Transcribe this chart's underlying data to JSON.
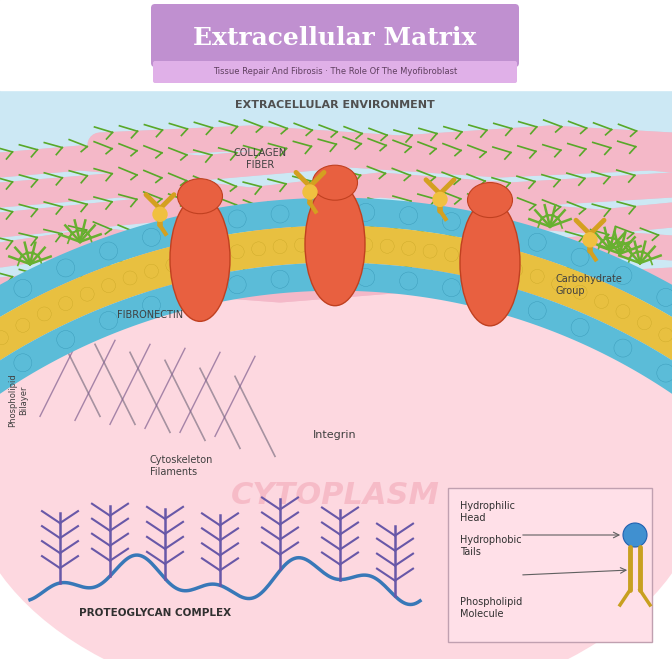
{
  "title": "Extracellular Matrix",
  "subtitle1": "Tissue Repair And Fibrosis",
  "subtitle2": "The Role Of The Myofibroblast",
  "extracellular_env_label": "EXTRACELLULAR ENVIRONMENT",
  "collagen_label": "COLLAGEN\nFIBER",
  "fibronectin_label": "FIBRONECTIN",
  "carbohydrate_label": "Carbohydrate\nGroup",
  "integrin_label": "Integrin",
  "cytoskeleton_label": "Cytoskeleton\nFilaments",
  "phospholipid_label": "Phospholipid\nBilayer",
  "cytoplasm_label": "CYTOPLASM",
  "proteoglycan_label": "PROTEOGLYCAN COMPLEX",
  "hydrophilic_label": "Hydrophilic\nHead",
  "hydrophobic_label": "Hydrophobic\nTails",
  "phospholipid_molecule_label": "Phospholipid\nMolecule",
  "title_bg": "#c090d0",
  "subtitle_bg": "#e0b0e8",
  "background_color": "#ffffff",
  "extracellular_bg": "#cce8f4",
  "cytoplasm_bg": "#fdd8e0",
  "membrane_teal": "#5bbcd8",
  "membrane_gold": "#e8c040",
  "membrane_orange": "#e88840",
  "collagen_pink": "#f4b8c8",
  "collagen_edge": "#d890a8",
  "integrin_orange": "#e86040",
  "fibronectin_gold": "#d4a020",
  "proteoglycan_blue": "#3878b8",
  "proteoglycan_purple": "#6858a8",
  "carbohydrate_green": "#68b030",
  "fig_width": 6.72,
  "fig_height": 6.59,
  "dpi": 100
}
